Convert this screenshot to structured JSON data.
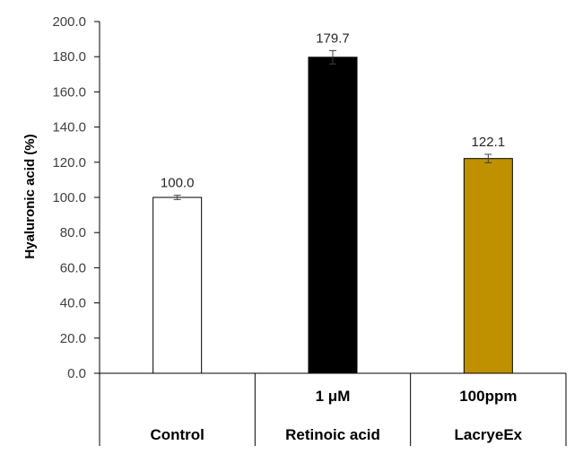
{
  "chart_data": {
    "type": "bar",
    "ylabel": "Hyaluronic acid (%)",
    "ylim": [
      0,
      200
    ],
    "ytick_labels": [
      "0.0",
      "20.0",
      "40.0",
      "60.0",
      "80.0",
      "100.0",
      "120.0",
      "140.0",
      "160.0",
      "180.0",
      "200.0"
    ],
    "categories": [
      {
        "top": "",
        "bottom": "Control"
      },
      {
        "top": "1 μM",
        "bottom": "Retinoic acid"
      },
      {
        "top": "100ppm",
        "bottom": "LacryeEx"
      }
    ],
    "values": [
      100.0,
      179.7,
      122.1
    ],
    "data_labels": [
      "100.0",
      "179.7",
      "122.1"
    ],
    "error": [
      1.2,
      3.8,
      2.4
    ],
    "bar_colors": [
      "#ffffff",
      "#000000",
      "#bf9000"
    ],
    "grid": false,
    "legend": "none"
  }
}
